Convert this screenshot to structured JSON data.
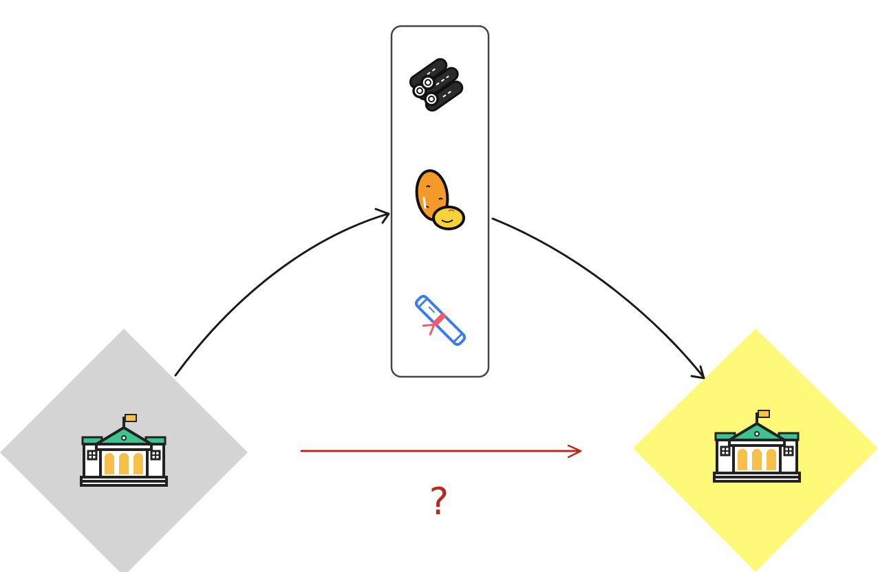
{
  "nodes": {
    "source": {
      "kind": "building",
      "fill": "#d4d4d4"
    },
    "target": {
      "kind": "building",
      "fill": "#fff97a"
    }
  },
  "resources": [
    {
      "icon": "logs-icon"
    },
    {
      "icon": "potato-icon"
    },
    {
      "icon": "scroll-icon"
    }
  ],
  "colors": {
    "arrow": "#1a1a1a",
    "direct_arrow": "#b8281e",
    "building_roof": "#3ec38f",
    "building_window": "#f7c04a",
    "building_flag": "#f7c04a"
  },
  "direct_label": "?"
}
